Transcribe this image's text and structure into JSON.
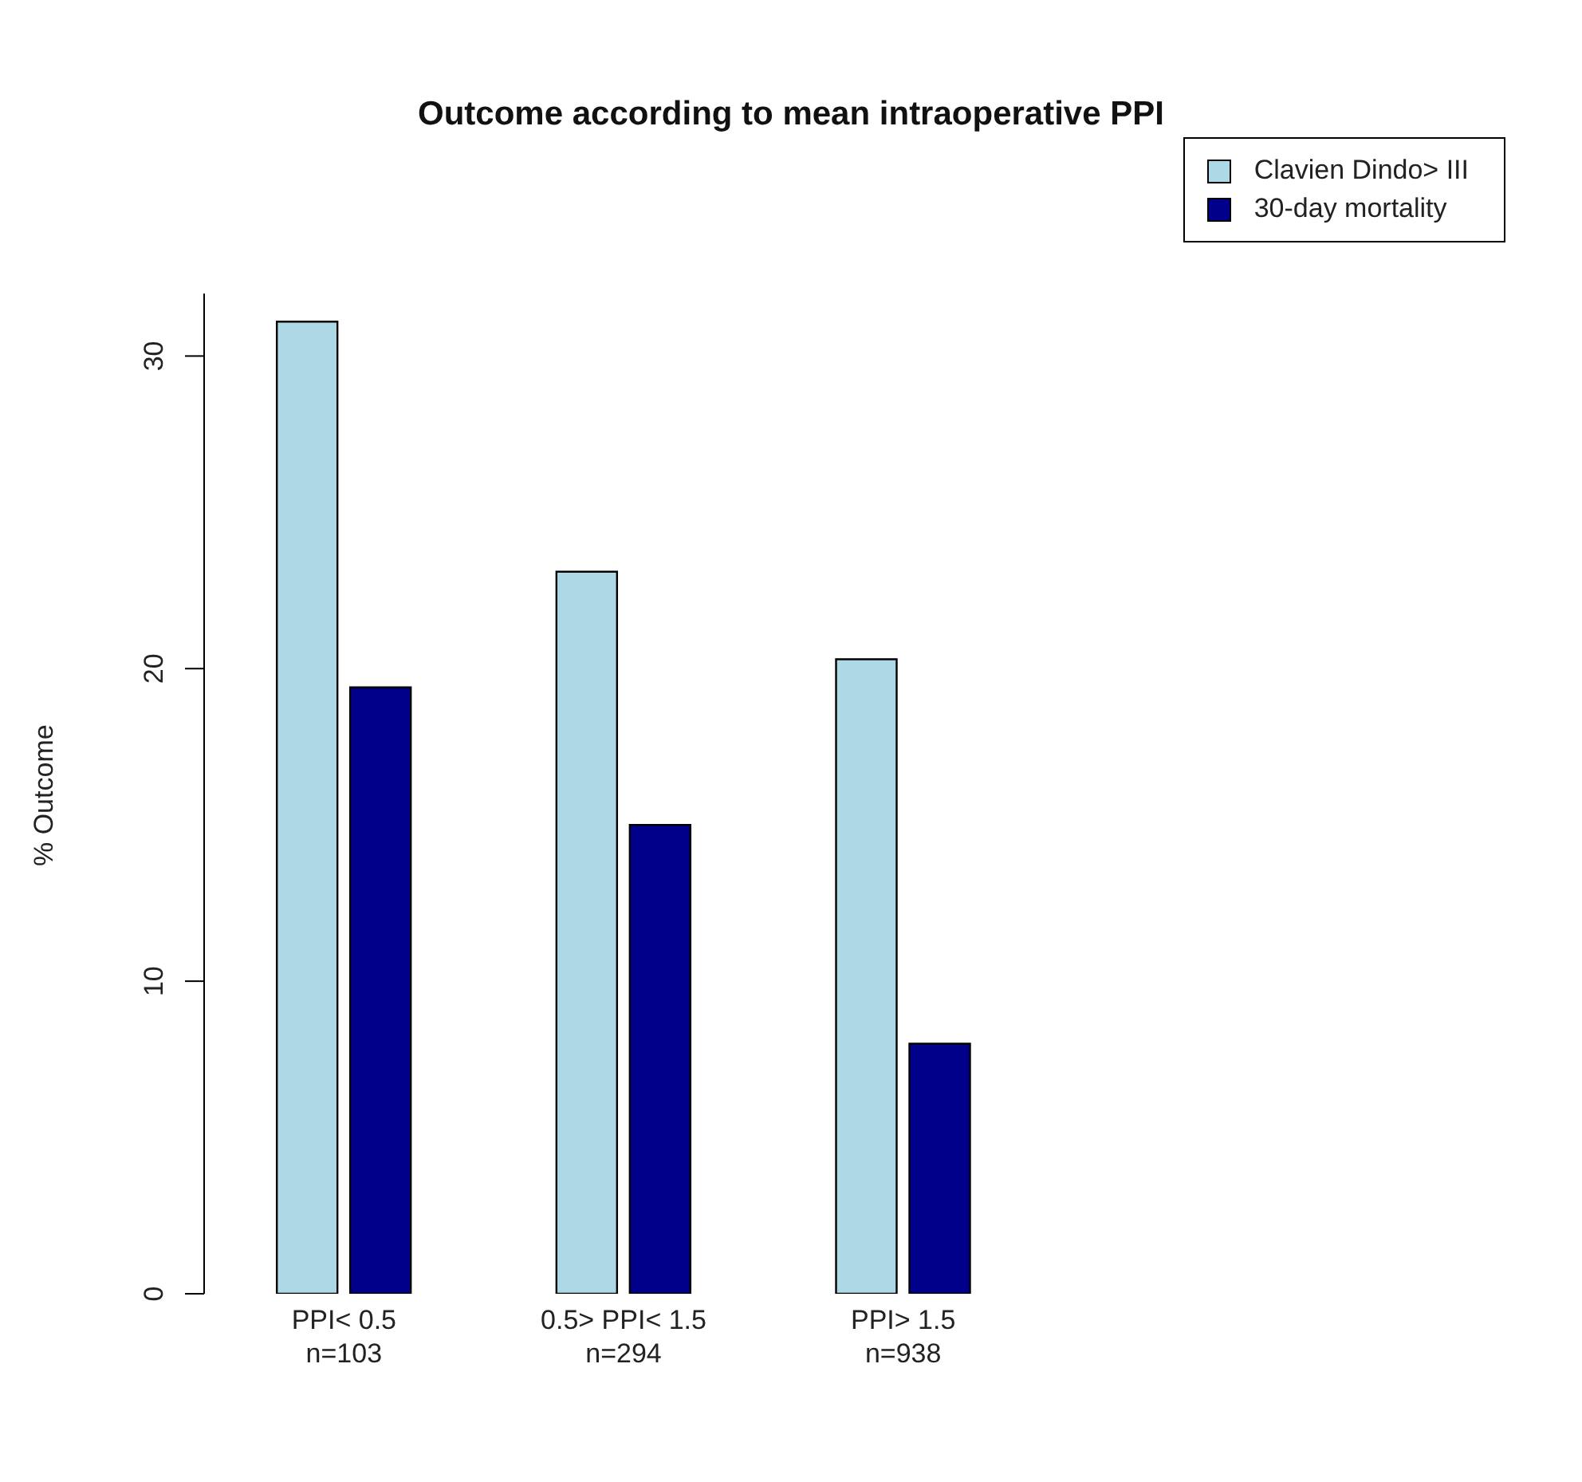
{
  "chart_data": {
    "type": "bar",
    "title": "Outcome according to mean intraoperative PPI",
    "ylabel": "% Outcome",
    "categories": [
      "PPI< 0.5\nn=103",
      "0.5> PPI< 1.5\nn=294",
      "PPI> 1.5\nn=938"
    ],
    "series": [
      {
        "name": "Clavien Dindo> III",
        "color": "#add8e6",
        "values": [
          31.1,
          23.1,
          20.3
        ]
      },
      {
        "name": "30-day mortality",
        "color": "#00008b",
        "values": [
          19.4,
          15.0,
          8.0
        ]
      }
    ],
    "ylim": [
      0,
      32
    ],
    "yticks": [
      0,
      10,
      20,
      30
    ],
    "legend": "top right"
  }
}
